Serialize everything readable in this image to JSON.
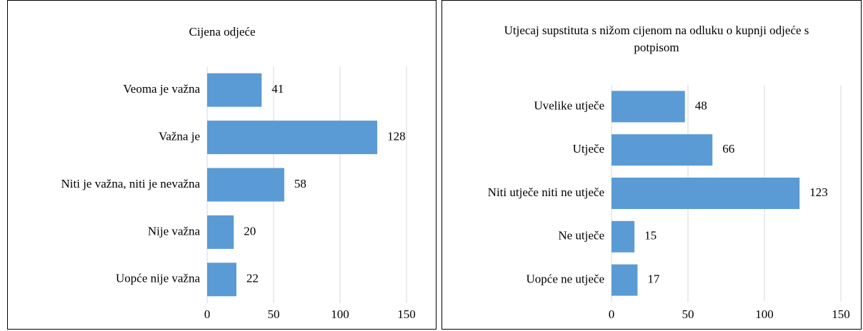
{
  "chart_data": [
    {
      "type": "bar",
      "orientation": "horizontal",
      "title": "Cijena odjeće",
      "categories": [
        "Veoma je važna",
        "Važna je",
        "Niti je važna, niti je nevažna",
        "Nije važna",
        "Uopće nije važna"
      ],
      "values": [
        41,
        128,
        58,
        20,
        22
      ],
      "color": "#5b9bd5",
      "xlim": [
        0,
        150
      ],
      "xticks": [
        0,
        50,
        100,
        150
      ],
      "grid": true
    },
    {
      "type": "bar",
      "orientation": "horizontal",
      "title": "Utjecaj supstituta s nižom cijenom na odluku o kupnji odjeće s potpisom",
      "categories": [
        "Uvelike utječe",
        "Utječe",
        "Niti utječe niti ne utječe",
        "Ne utječe",
        "Uopće ne utječe"
      ],
      "values": [
        48,
        66,
        123,
        15,
        17
      ],
      "color": "#5b9bd5",
      "xlim": [
        0,
        150
      ],
      "xticks": [
        0,
        50,
        100,
        150
      ],
      "grid": true
    }
  ]
}
